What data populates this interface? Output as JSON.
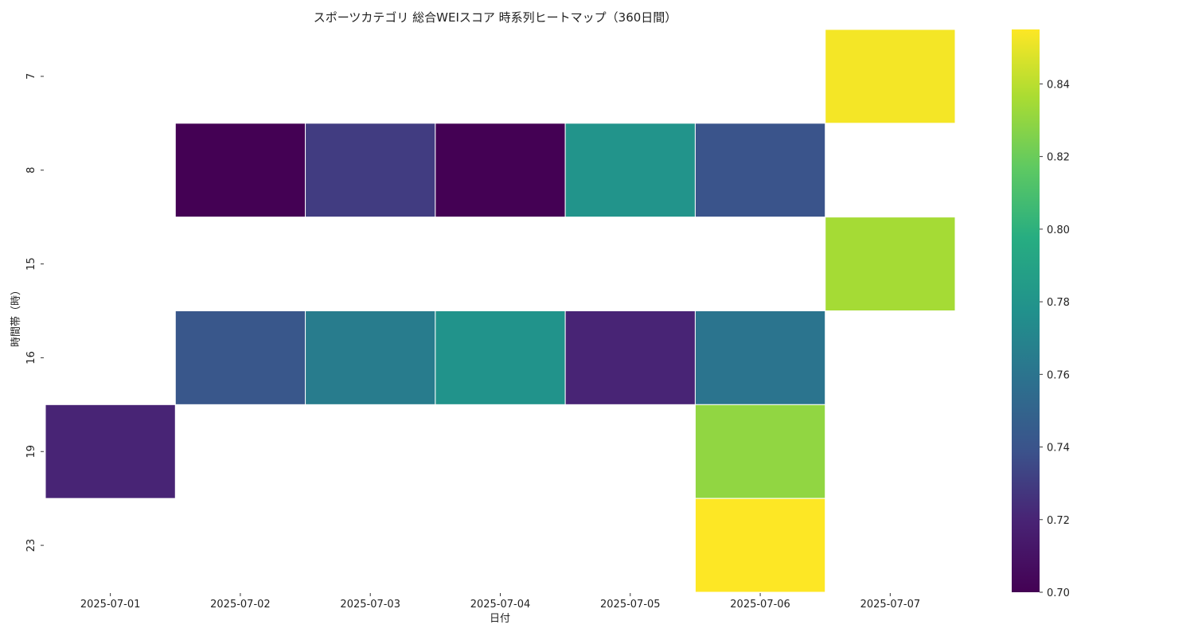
{
  "chart_data": {
    "type": "heatmap",
    "title": "スポーツカテゴリ 総合WEIスコア 時系列ヒートマップ（360日間）",
    "xlabel": "日付",
    "ylabel": "時間帯（時）",
    "x": [
      "2025-07-01",
      "2025-07-02",
      "2025-07-03",
      "2025-07-04",
      "2025-07-05",
      "2025-07-06",
      "2025-07-07"
    ],
    "y": [
      "7",
      "8",
      "15",
      "16",
      "19",
      "23"
    ],
    "values": [
      [
        null,
        null,
        null,
        null,
        null,
        null,
        0.853
      ],
      [
        null,
        0.7,
        0.73,
        0.7,
        0.78,
        0.74,
        null
      ],
      [
        null,
        null,
        null,
        null,
        null,
        null,
        0.835
      ],
      [
        null,
        0.742,
        0.765,
        0.779,
        0.72,
        0.76,
        null
      ],
      [
        0.72,
        null,
        null,
        null,
        null,
        0.83,
        null
      ],
      [
        null,
        null,
        null,
        null,
        null,
        0.855,
        null
      ]
    ],
    "colorscale": "viridis",
    "colorbar": {
      "range": [
        0.7,
        0.855
      ],
      "ticks": [
        "0.70",
        "0.72",
        "0.74",
        "0.76",
        "0.78",
        "0.80",
        "0.82",
        "0.84"
      ]
    },
    "grid": false
  }
}
